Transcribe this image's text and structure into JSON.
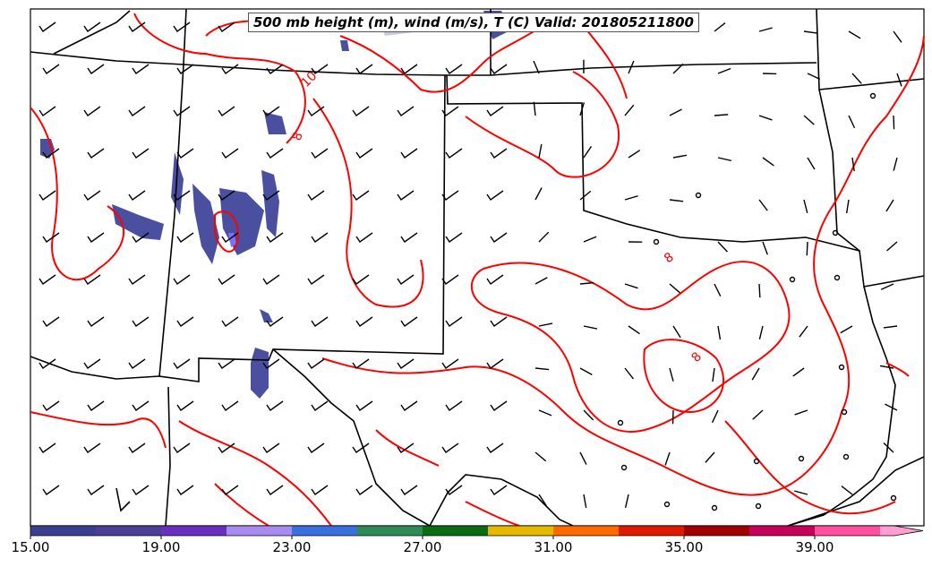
{
  "title": "500 mb height (m), wind (m/s), T (C) Valid: 201805211800",
  "contour_labels": [
    "10",
    "8",
    "8",
    "8"
  ],
  "colorbar": {
    "tick_labels": [
      "15.00",
      "19.00",
      "23.00",
      "27.00",
      "31.00",
      "35.00",
      "39.00"
    ],
    "colors": [
      "#3b3f8f",
      "#4b3f98",
      "#6a2fbf",
      "#a78bf0",
      "#3a6fe0",
      "#2e8b57",
      "#0b6b12",
      "#e6b800",
      "#ff6a00",
      "#e01a00",
      "#a00000",
      "#c7005a",
      "#ff4fa0",
      "#ff9ed0"
    ]
  },
  "colors": {
    "contour": "#ff0000",
    "border": "#000000",
    "precip_fill": "#4b4f9f"
  }
}
